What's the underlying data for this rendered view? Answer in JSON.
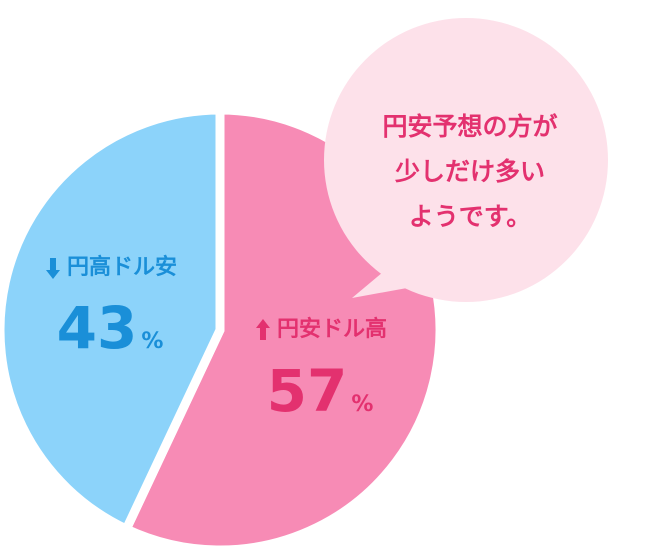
{
  "chart_data": {
    "type": "pie",
    "categories": [
      "円安ドル高",
      "円高ドル安"
    ],
    "values": [
      57,
      43
    ],
    "value_labels": [
      "57%",
      "43%"
    ],
    "colors": [
      "#f78bb5",
      "#8cd3fa"
    ],
    "label_colors": [
      "#e3316f",
      "#1a8fd8"
    ],
    "annotation": [
      "円安予想の方が",
      "少しだけ多い",
      "ようです。"
    ]
  }
}
